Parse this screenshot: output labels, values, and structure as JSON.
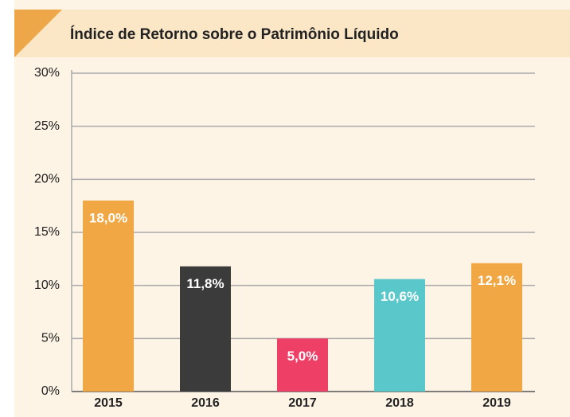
{
  "chart_data": {
    "type": "bar",
    "title": "Índice de Retorno sobre o Patrimônio Líquido",
    "categories": [
      "2015",
      "2016",
      "2017",
      "2018",
      "2019"
    ],
    "values": [
      18.0,
      11.8,
      5.0,
      10.6,
      12.1
    ],
    "value_labels": [
      "18,0%",
      "11,8%",
      "5,0%",
      "10,6%",
      "12,1%"
    ],
    "colors": [
      "#f0a744",
      "#3b3b3b",
      "#ee3f66",
      "#5ac7ca",
      "#f0a744"
    ],
    "ylim": [
      0,
      30
    ],
    "yticks": [
      {
        "value": 0,
        "label": "0%"
      },
      {
        "value": 5,
        "label": "5%"
      },
      {
        "value": 10,
        "label": "10%"
      },
      {
        "value": 15,
        "label": "15%"
      },
      {
        "value": 20,
        "label": "20%"
      },
      {
        "value": 25,
        "label": "25%"
      },
      {
        "value": 30,
        "label": "30%"
      }
    ],
    "grid": true
  }
}
